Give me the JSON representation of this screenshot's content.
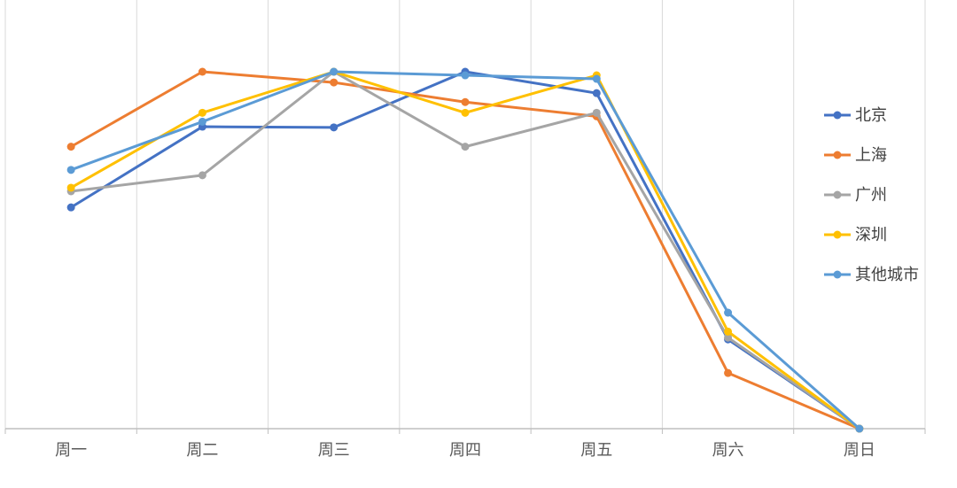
{
  "chart_data": {
    "type": "line",
    "title": "",
    "xlabel": "",
    "ylabel": "",
    "categories": [
      "周一",
      "周二",
      "周三",
      "周四",
      "周五",
      "周六",
      "周日"
    ],
    "ylim": [
      0,
      1
    ],
    "grid": "vertical",
    "legend_position": "right",
    "series": [
      {
        "name": "北京",
        "color": "#4472C4",
        "values": [
          0.62,
          0.846,
          0.844,
          1.0,
          0.94,
          0.25,
          0.0
        ]
      },
      {
        "name": "上海",
        "color": "#ED7D31",
        "values": [
          0.79,
          1.0,
          0.97,
          0.915,
          0.875,
          0.156,
          0.0
        ]
      },
      {
        "name": "广州",
        "color": "#A5A5A5",
        "values": [
          0.665,
          0.71,
          1.0,
          0.79,
          0.885,
          0.255,
          0.0
        ]
      },
      {
        "name": "深圳",
        "color": "#FFC000",
        "values": [
          0.675,
          0.885,
          1.0,
          0.885,
          0.99,
          0.272,
          0.0
        ]
      },
      {
        "name": "其他城市",
        "color": "#5B9BD5",
        "values": [
          0.725,
          0.86,
          1.0,
          0.99,
          0.98,
          0.325,
          0.0
        ]
      }
    ]
  }
}
